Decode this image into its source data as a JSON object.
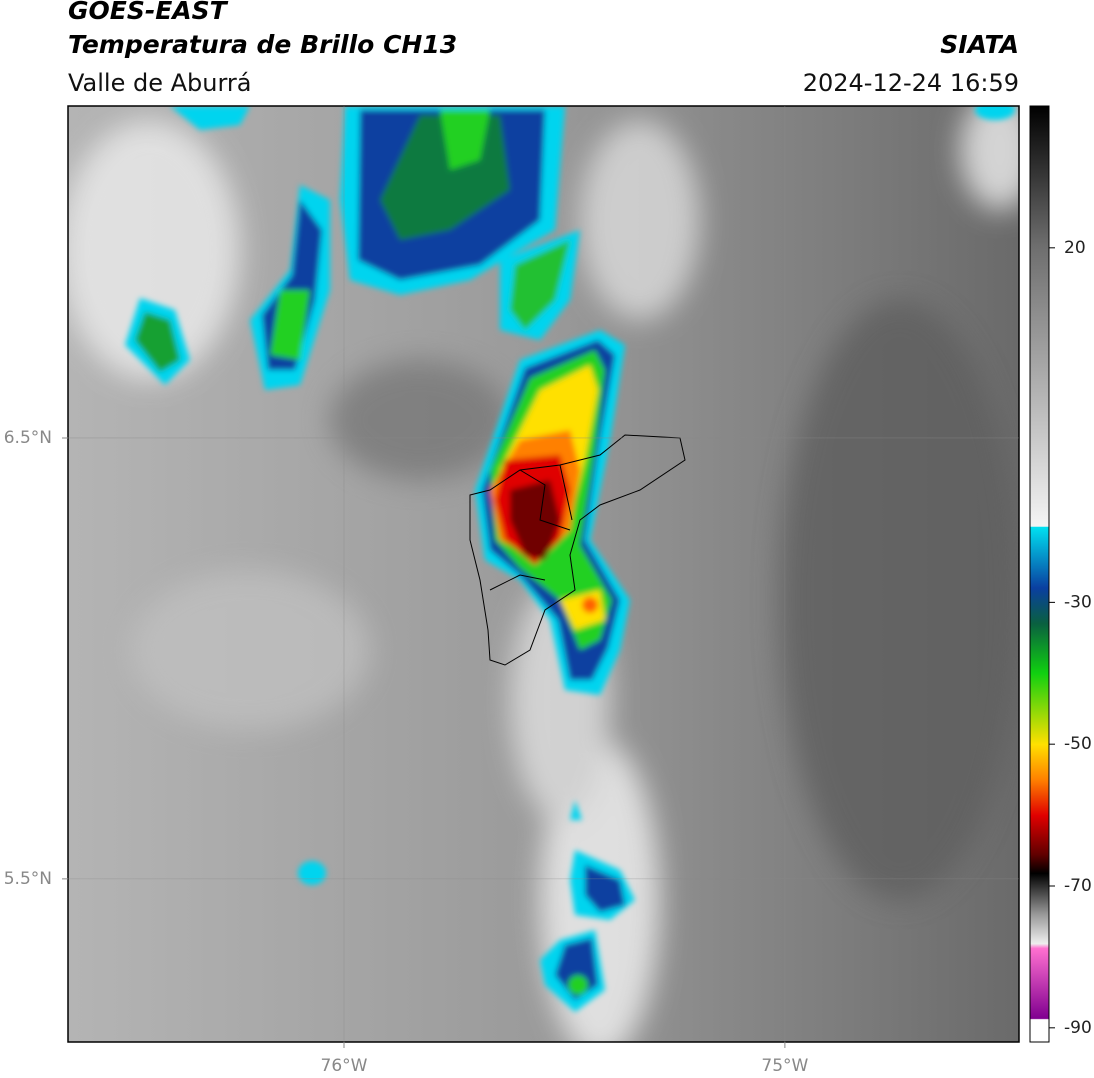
{
  "header": {
    "title": "GOES-EAST",
    "subtitle": "Temperatura de Brillo CH13",
    "region": "Valle de Aburrá",
    "source": "SIATA",
    "datetime": "2024-12-24 16:59"
  },
  "map": {
    "xlim": [
      -76.626,
      -74.469
    ],
    "ylim": [
      5.13,
      7.253
    ],
    "xticks": [
      {
        "value": -76,
        "label": "76°W"
      },
      {
        "value": -75,
        "label": "75°W"
      }
    ],
    "yticks": [
      {
        "value": 6.5,
        "label": "6.5°N"
      },
      {
        "value": 5.5,
        "label": "5.5°N"
      }
    ],
    "grid": true
  },
  "colorbar": {
    "lim": [
      -92,
      40
    ],
    "ticks": [
      20,
      -30,
      -50,
      -70,
      -90
    ]
  }
}
